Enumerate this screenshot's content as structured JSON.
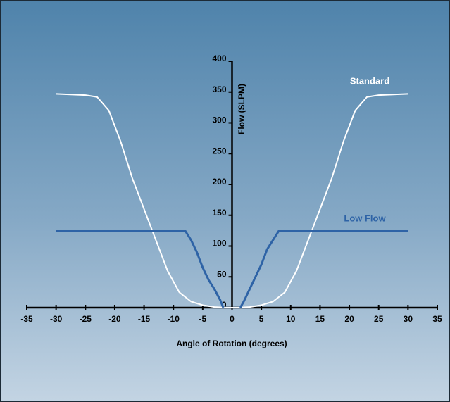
{
  "chart_data": {
    "type": "line",
    "xlabel": "Angle of Rotation (degrees)",
    "ylabel": "Flow (SLPM)",
    "xlim": [
      -35,
      35
    ],
    "xticks": [
      -35,
      -30,
      -25,
      -20,
      -15,
      -10,
      -5,
      0,
      5,
      10,
      15,
      20,
      25,
      30,
      35
    ],
    "ylim": [
      0,
      400
    ],
    "yticks": [
      0,
      50,
      100,
      150,
      200,
      250,
      300,
      350,
      400
    ],
    "series": [
      {
        "name": "Standard",
        "color": "#ffffff",
        "x": [
          -30,
          -25,
          -23,
          -21,
          -19,
          -17,
          -15,
          -13,
          -11,
          -9,
          -7,
          -5,
          -3,
          -1,
          1,
          3,
          5,
          7,
          9,
          11,
          13,
          15,
          17,
          19,
          21,
          23,
          25,
          30
        ],
        "values": [
          347,
          345,
          342,
          320,
          270,
          210,
          160,
          110,
          60,
          25,
          10,
          4,
          1,
          0,
          0,
          1,
          4,
          10,
          25,
          60,
          110,
          160,
          210,
          270,
          320,
          342,
          345,
          347
        ]
      },
      {
        "name": "Low Flow",
        "color": "#2e63a6",
        "x": [
          -30,
          -8,
          -7,
          -6,
          -5,
          -4,
          -3,
          -2,
          -1.5,
          null,
          1.4,
          2,
          3,
          4,
          5,
          6,
          7,
          8,
          30
        ],
        "values": [
          125,
          125,
          110,
          90,
          65,
          45,
          30,
          12,
          0,
          null,
          0,
          10,
          30,
          50,
          70,
          95,
          110,
          125,
          125
        ]
      }
    ]
  }
}
